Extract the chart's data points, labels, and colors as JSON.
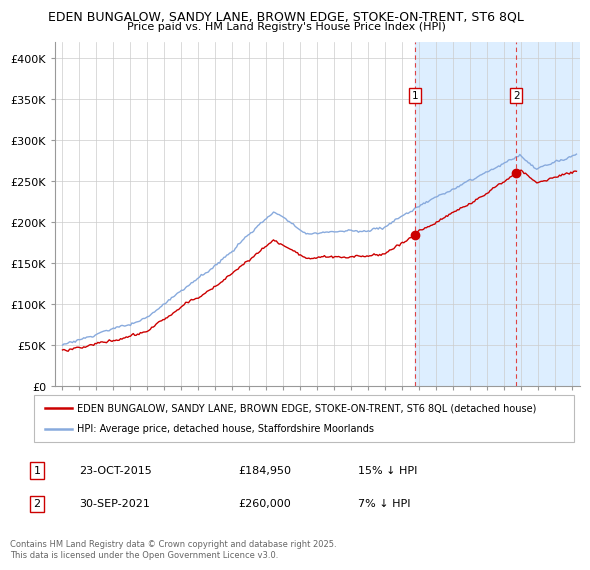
{
  "title_line1": "EDEN BUNGALOW, SANDY LANE, BROWN EDGE, STOKE-ON-TRENT, ST6 8QL",
  "title_line2": "Price paid vs. HM Land Registry's House Price Index (HPI)",
  "legend_label_red": "EDEN BUNGALOW, SANDY LANE, BROWN EDGE, STOKE-ON-TRENT, ST6 8QL (detached house)",
  "legend_label_blue": "HPI: Average price, detached house, Staffordshire Moorlands",
  "sale1_date": "23-OCT-2015",
  "sale1_price": 184950,
  "sale1_note": "15% ↓ HPI",
  "sale2_date": "30-SEP-2021",
  "sale2_price": 260000,
  "sale2_note": "7% ↓ HPI",
  "footer": "Contains HM Land Registry data © Crown copyright and database right 2025.\nThis data is licensed under the Open Government Licence v3.0.",
  "red_color": "#cc0000",
  "blue_color": "#88aadd",
  "highlight_bg": "#ddeeff",
  "vline_color": "#dd4444",
  "ylim": [
    0,
    420000
  ],
  "yticks": [
    0,
    50000,
    100000,
    150000,
    200000,
    250000,
    300000,
    350000,
    400000
  ],
  "ytick_labels": [
    "£0",
    "£50K",
    "£100K",
    "£150K",
    "£200K",
    "£250K",
    "£300K",
    "£350K",
    "£400K"
  ],
  "sale1_x": 2015.81,
  "sale2_x": 2021.75,
  "xmin": 1994.6,
  "xmax": 2025.5
}
